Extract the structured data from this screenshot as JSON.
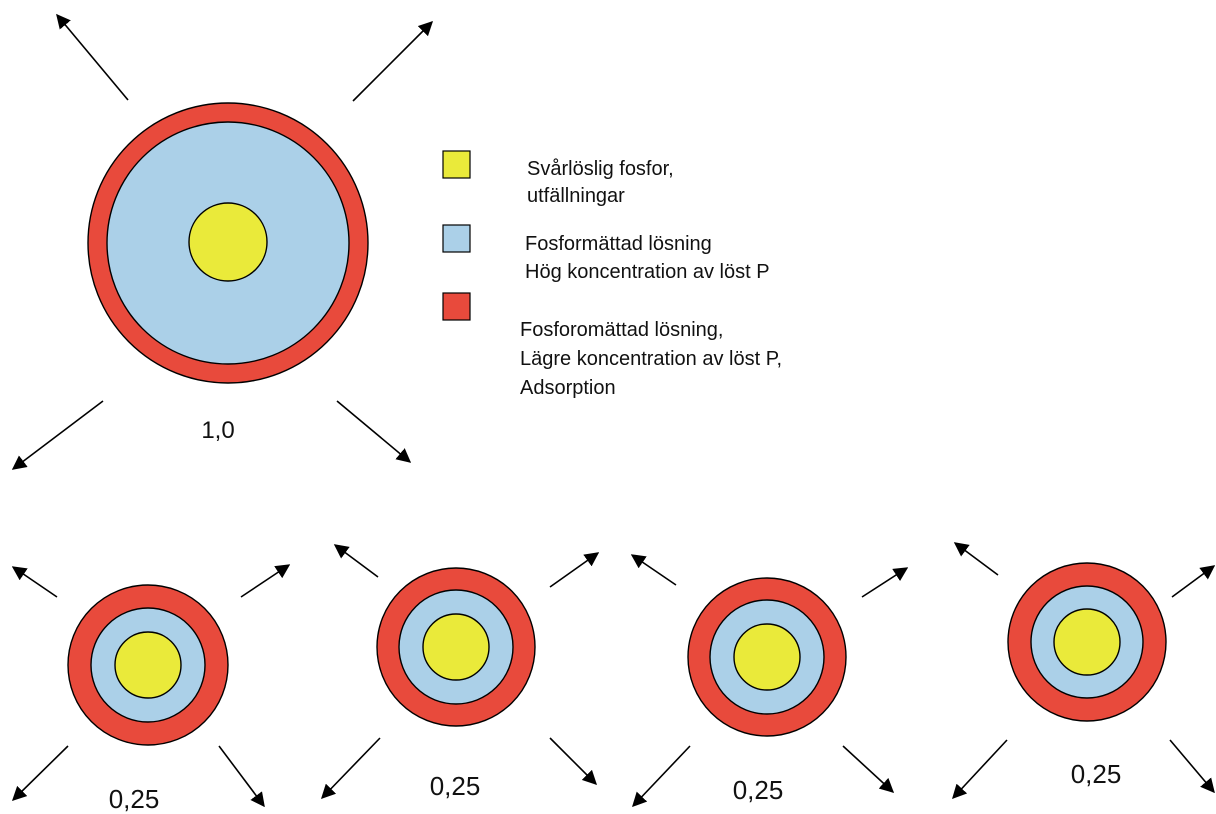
{
  "colors": {
    "core": "#eaea3a",
    "solution": "#abd0e8",
    "outer": "#e84a3c",
    "outline": "#000000"
  },
  "legend": [
    {
      "color": "#eaea3a",
      "lines": [
        "Svårlöslig fosfor,",
        "utfällningar"
      ]
    },
    {
      "color": "#abd0e8",
      "lines": [
        "Fosformättad lösning",
        "Hög koncentration av löst P"
      ]
    },
    {
      "color": "#e84a3c",
      "lines": [
        "Fosforomättad lösning,",
        "Lägre koncentration av löst P,",
        "Adsorption"
      ]
    }
  ],
  "particles": [
    {
      "label": "1,0"
    },
    {
      "label": "0,25"
    },
    {
      "label": "0,25"
    },
    {
      "label": "0,25"
    },
    {
      "label": "0,25"
    }
  ]
}
